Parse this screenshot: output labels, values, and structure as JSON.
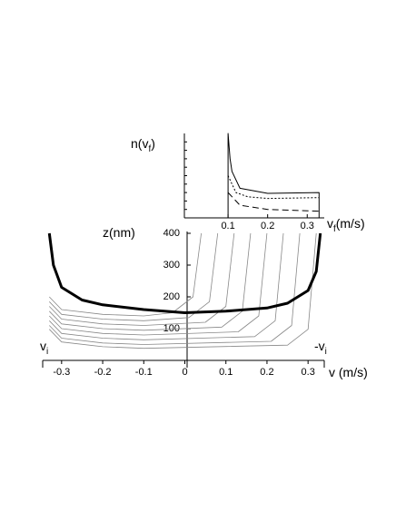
{
  "chart_data": [
    {
      "type": "line",
      "xlabel_parts": [
        "v (m/s)"
      ],
      "ylabel_parts": [
        "z(nm)"
      ],
      "annotations": [
        [
          "v",
          "i"
        ],
        [
          "-v",
          "i"
        ]
      ],
      "xlim": [
        -0.335,
        0.335
      ],
      "xticks": [
        -0.3,
        -0.2,
        -0.1,
        0,
        0.1,
        0.2,
        0.3
      ],
      "ylim": [
        0,
        400
      ],
      "yticks": [
        100,
        200,
        300,
        400
      ],
      "series": [
        {
          "color": "#888888",
          "width": 0.8,
          "x": [
            -0.33,
            -0.3,
            -0.2,
            -0.1,
            -0.03,
            0.02,
            0.04
          ],
          "values": [
            200,
            160,
            145,
            140,
            150,
            200,
            400
          ]
        },
        {
          "color": "#888888",
          "width": 0.8,
          "x": [
            -0.33,
            -0.3,
            -0.2,
            -0.1,
            0.01,
            0.06,
            0.08
          ],
          "values": [
            185,
            145,
            130,
            125,
            135,
            185,
            400
          ]
        },
        {
          "color": "#888888",
          "width": 0.8,
          "x": [
            -0.33,
            -0.3,
            -0.2,
            -0.1,
            0.05,
            0.1,
            0.12
          ],
          "values": [
            170,
            130,
            115,
            110,
            120,
            170,
            400
          ]
        },
        {
          "color": "#888888",
          "width": 0.8,
          "x": [
            -0.33,
            -0.3,
            -0.2,
            -0.1,
            0.09,
            0.14,
            0.16
          ],
          "values": [
            155,
            115,
            100,
            95,
            105,
            155,
            400
          ]
        },
        {
          "color": "#888888",
          "width": 0.8,
          "x": [
            -0.33,
            -0.3,
            -0.2,
            -0.1,
            0.13,
            0.18,
            0.2
          ],
          "values": [
            140,
            100,
            85,
            80,
            90,
            140,
            400
          ]
        },
        {
          "color": "#888888",
          "width": 0.8,
          "x": [
            -0.33,
            -0.3,
            -0.2,
            -0.1,
            0.17,
            0.22,
            0.24
          ],
          "values": [
            125,
            85,
            70,
            65,
            75,
            125,
            400
          ]
        },
        {
          "color": "#888888",
          "width": 0.8,
          "x": [
            -0.33,
            -0.3,
            -0.2,
            -0.1,
            0.21,
            0.26,
            0.28
          ],
          "values": [
            110,
            70,
            55,
            50,
            60,
            110,
            400
          ]
        },
        {
          "color": "#888888",
          "width": 0.8,
          "x": [
            -0.33,
            -0.3,
            -0.2,
            -0.1,
            0.25,
            0.3,
            0.32
          ],
          "values": [
            98,
            58,
            43,
            38,
            48,
            98,
            400
          ]
        },
        {
          "color": "#000000",
          "width": 3,
          "x": [
            -0.33,
            -0.32,
            -0.3,
            -0.25,
            -0.2,
            -0.1,
            0,
            0.1,
            0.2,
            0.25,
            0.3,
            0.32,
            0.33
          ],
          "values": [
            400,
            300,
            230,
            190,
            175,
            160,
            150,
            155,
            165,
            180,
            220,
            280,
            400
          ]
        }
      ]
    },
    {
      "type": "line",
      "xlabel_parts": [
        "v",
        "f",
        "(m/s)"
      ],
      "ylabel_parts": [
        "n(v",
        "f",
        ")"
      ],
      "xlim": [
        0,
        0.343
      ],
      "xticks": [
        0.1,
        0.2,
        0.3
      ],
      "ylim": [
        0,
        1
      ],
      "series": [
        {
          "color": "#000000",
          "width": 1,
          "x": [
            0.1,
            0.1,
            0.105,
            0.11,
            0.13,
            0.2,
            0.33,
            0.33
          ],
          "values": [
            0,
            1,
            0.7,
            0.55,
            0.35,
            0.29,
            0.3,
            0
          ]
        },
        {
          "color": "#000000",
          "width": 1,
          "dash": "2,2",
          "x": [
            0.1,
            0.12,
            0.15,
            0.2,
            0.33
          ],
          "values": [
            0.5,
            0.3,
            0.25,
            0.23,
            0.24
          ]
        },
        {
          "color": "#000000",
          "width": 1,
          "dash": "7,4",
          "x": [
            0.1,
            0.13,
            0.2,
            0.33
          ],
          "values": [
            0.3,
            0.15,
            0.1,
            0.08
          ]
        }
      ]
    }
  ]
}
